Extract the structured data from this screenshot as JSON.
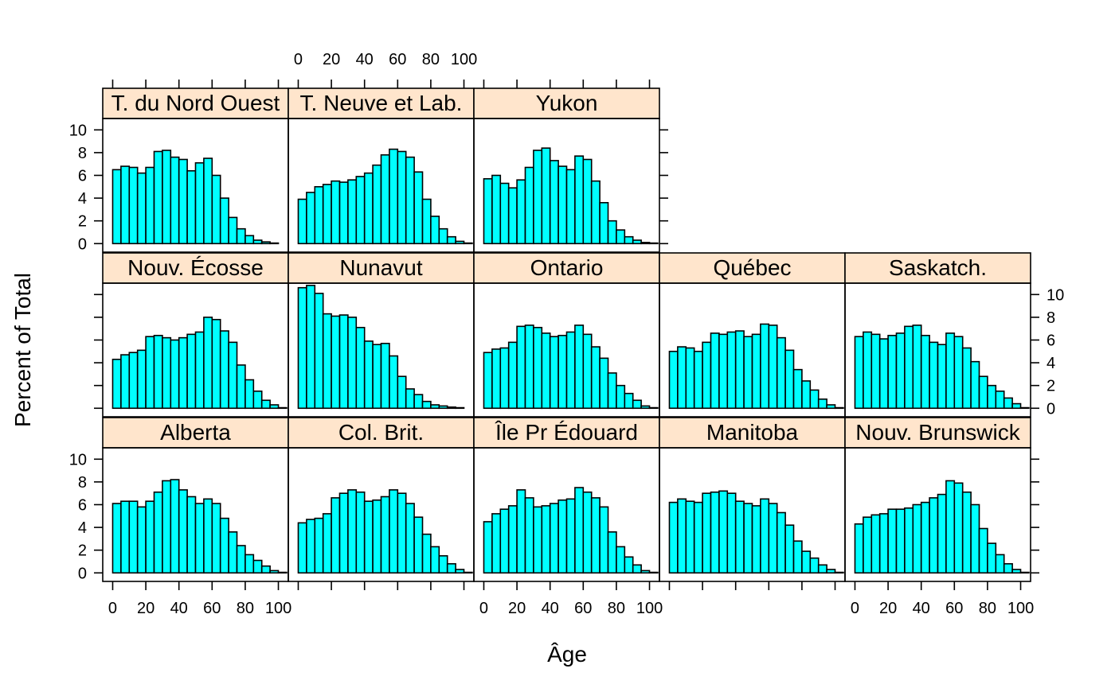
{
  "colors": {
    "bar_fill": "#00FFFF",
    "bar_stroke": "#000000",
    "strip_fill": "#FFE5CC",
    "frame": "#000000"
  },
  "chart_data": {
    "type": "bar",
    "layout": "lattice histogram panels, 3 rows, bottom row first",
    "xlabel": "Âge",
    "ylabel": "Percent of Total",
    "xlim": [
      -6,
      106
    ],
    "ylim": [
      -0.75,
      11
    ],
    "x_ticks": [
      "0",
      "20",
      "40",
      "60",
      "80",
      "100"
    ],
    "y_ticks": [
      "0",
      "2",
      "4",
      "6",
      "8",
      "10"
    ],
    "bin_width": 5,
    "bin_starts": [
      0,
      5,
      10,
      15,
      20,
      25,
      30,
      35,
      40,
      45,
      50,
      55,
      60,
      65,
      70,
      75,
      80,
      85,
      90,
      95,
      100
    ],
    "panels": [
      {
        "name": "Alberta",
        "row": 0,
        "col": 0,
        "values": [
          6.1,
          6.3,
          6.3,
          5.8,
          6.3,
          7.1,
          8.1,
          8.2,
          7.3,
          6.7,
          6.1,
          6.5,
          6.1,
          4.8,
          3.6,
          2.4,
          1.6,
          1.1,
          0.6,
          0.2,
          0.05
        ]
      },
      {
        "name": "Col. Brit.",
        "row": 0,
        "col": 1,
        "values": [
          4.4,
          4.7,
          4.8,
          5.2,
          6.6,
          7.0,
          7.3,
          7.1,
          6.3,
          6.4,
          6.7,
          7.3,
          7.0,
          6.1,
          4.9,
          3.4,
          2.3,
          1.5,
          0.8,
          0.3,
          0.05
        ]
      },
      {
        "name": "Île Pr Édouard",
        "row": 0,
        "col": 2,
        "values": [
          4.5,
          5.2,
          5.6,
          5.9,
          7.3,
          6.6,
          5.8,
          5.9,
          6.1,
          6.4,
          6.5,
          7.5,
          7.1,
          6.6,
          5.8,
          3.6,
          2.3,
          1.4,
          0.7,
          0.2,
          0.05
        ]
      },
      {
        "name": "Manitoba",
        "row": 0,
        "col": 3,
        "values": [
          6.2,
          6.5,
          6.3,
          6.2,
          7.0,
          7.1,
          7.2,
          7.0,
          6.3,
          6.1,
          5.9,
          6.5,
          6.1,
          5.3,
          4.2,
          2.8,
          1.9,
          1.3,
          0.7,
          0.3,
          0.05
        ]
      },
      {
        "name": "Nouv. Brunswick",
        "row": 0,
        "col": 4,
        "values": [
          4.3,
          4.9,
          5.1,
          5.2,
          5.6,
          5.6,
          5.7,
          6.0,
          6.2,
          6.6,
          6.9,
          8.1,
          7.9,
          7.1,
          6.0,
          3.9,
          2.6,
          1.6,
          0.8,
          0.3,
          0.05
        ]
      },
      {
        "name": "Nouv. Écosse",
        "row": 1,
        "col": 0,
        "values": [
          4.3,
          4.7,
          4.9,
          5.1,
          6.3,
          6.4,
          6.2,
          6.0,
          6.2,
          6.5,
          6.7,
          8.0,
          7.8,
          6.8,
          5.8,
          3.8,
          2.5,
          1.5,
          0.7,
          0.3,
          0.05
        ]
      },
      {
        "name": "Nunavut",
        "row": 1,
        "col": 1,
        "values": [
          10.6,
          10.8,
          10.1,
          8.3,
          8.1,
          8.2,
          8.0,
          7.1,
          5.9,
          5.6,
          5.7,
          4.6,
          2.8,
          1.7,
          1.2,
          0.6,
          0.3,
          0.2,
          0.1,
          0.05,
          0.0
        ]
      },
      {
        "name": "Ontario",
        "row": 1,
        "col": 2,
        "values": [
          4.9,
          5.2,
          5.3,
          5.8,
          7.2,
          7.3,
          7.1,
          6.6,
          6.3,
          6.4,
          6.7,
          7.3,
          6.5,
          5.4,
          4.4,
          3.1,
          2.0,
          1.3,
          0.7,
          0.2,
          0.05
        ]
      },
      {
        "name": "Québec",
        "row": 1,
        "col": 3,
        "values": [
          5.0,
          5.4,
          5.3,
          5.0,
          5.8,
          6.6,
          6.5,
          6.7,
          6.8,
          6.3,
          6.5,
          7.4,
          7.3,
          6.2,
          5.1,
          3.4,
          2.4,
          1.6,
          0.8,
          0.3,
          0.05
        ]
      },
      {
        "name": "Saskatch.",
        "row": 1,
        "col": 4,
        "values": [
          6.3,
          6.7,
          6.5,
          6.1,
          6.4,
          6.6,
          7.2,
          7.3,
          6.4,
          5.8,
          5.6,
          6.6,
          6.3,
          5.3,
          4.1,
          2.8,
          2.0,
          1.5,
          0.9,
          0.4,
          0.05
        ]
      },
      {
        "name": "T. du Nord Ouest",
        "row": 2,
        "col": 0,
        "values": [
          6.5,
          6.8,
          6.7,
          6.2,
          6.7,
          8.1,
          8.2,
          7.6,
          7.4,
          6.4,
          7.1,
          7.5,
          6.0,
          4.0,
          2.3,
          1.3,
          0.7,
          0.3,
          0.15,
          0.05,
          0.0
        ]
      },
      {
        "name": "T. Neuve et Lab.",
        "row": 2,
        "col": 1,
        "values": [
          3.9,
          4.5,
          5.0,
          5.2,
          5.5,
          5.4,
          5.6,
          5.9,
          6.2,
          6.9,
          7.8,
          8.3,
          8.1,
          7.6,
          6.3,
          3.9,
          2.4,
          1.3,
          0.6,
          0.2,
          0.05
        ]
      },
      {
        "name": "Yukon",
        "row": 2,
        "col": 2,
        "values": [
          5.7,
          6.0,
          5.3,
          4.9,
          5.6,
          6.7,
          8.2,
          8.4,
          7.3,
          6.8,
          6.5,
          7.7,
          7.4,
          5.5,
          3.6,
          2.0,
          1.2,
          0.6,
          0.3,
          0.1,
          0.05
        ]
      }
    ]
  }
}
